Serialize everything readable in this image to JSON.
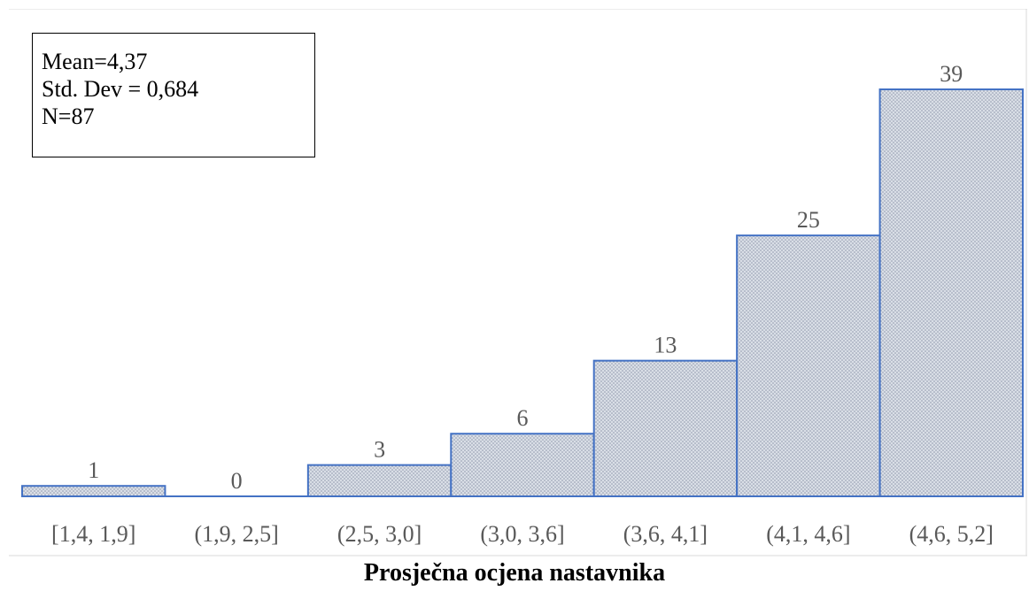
{
  "chart_data": {
    "type": "bar",
    "categories": [
      "[1,4, 1,9]",
      "(1,9, 2,5]",
      "(2,5, 3,0]",
      "(3,0, 3,6]",
      "(3,6, 4,1]",
      "(4,1, 4,6]",
      "(4,6, 5,2]"
    ],
    "values": [
      1,
      0,
      3,
      6,
      13,
      25,
      39
    ],
    "title": "Prosječna ocjena nastavnika",
    "xlabel": "",
    "ylabel": "",
    "ylim": [
      0,
      45
    ],
    "grid": false,
    "data_labels": true,
    "annotation": {
      "lines": [
        "Mean=4,37",
        "Std. Dev = 0,684",
        "N=87"
      ],
      "placement": "top-left"
    },
    "colors": {
      "bar_stroke": "#4472c4",
      "bar_fill": "#d9dee6",
      "dot": "#8a93a8",
      "label": "#595959"
    }
  }
}
